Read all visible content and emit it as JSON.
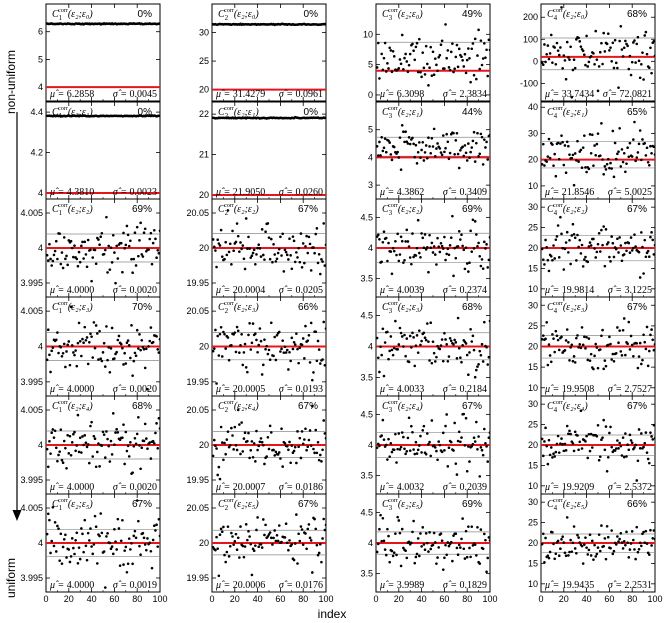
{
  "side": {
    "top_label": "non-uniform",
    "bottom_label": "uniform"
  },
  "xlabel": "index",
  "colors": {
    "mean_line": "#e8141c",
    "band_line": "#8a8a8a",
    "points": "#000000"
  },
  "chart_data": {
    "type": "scatter",
    "x_range": [
      0,
      100
    ],
    "x_ticks": [
      "0",
      "20",
      "40",
      "60",
      "80",
      "100"
    ],
    "columns": [
      {
        "C": "C",
        "sub": "1",
        "sup": "corr",
        "rows": [
          {
            "args": "(ε₂;ε₀)",
            "pct": "0%",
            "mu": "6.2858",
            "sigma": "0.0045",
            "mu_val": 6.2858,
            "sigma_val": 0.0045,
            "range": [
              3.5,
              7
            ],
            "ticks": [
              4,
              5,
              6,
              7
            ],
            "ref": 4,
            "mode": "flat"
          },
          {
            "args": "(ε₂;ε₁)",
            "pct": "0%",
            "mu": "4.3810",
            "sigma": "0.0023",
            "mu_val": 4.381,
            "sigma_val": 0.0023,
            "range": [
              3.97,
              4.45
            ],
            "ticks": [
              4,
              4.2,
              4.4
            ],
            "ref": 4,
            "mode": "flat"
          },
          {
            "args": "(ε₂;ε₂)",
            "pct": "69%",
            "mu": "4.0000",
            "sigma": "0.0020",
            "mu_val": 4.0,
            "sigma_val": 0.002,
            "range": [
              3.993,
              4.007
            ],
            "ticks": [
              3.995,
              4,
              4.005
            ],
            "ref": 4,
            "mode": "scatter"
          },
          {
            "args": "(ε₂;ε₃)",
            "pct": "70%",
            "mu": "4.0000",
            "sigma": "0.0020",
            "mu_val": 4.0,
            "sigma_val": 0.002,
            "range": [
              3.993,
              4.007
            ],
            "ticks": [
              3.995,
              4,
              4.005
            ],
            "ref": 4,
            "mode": "scatter"
          },
          {
            "args": "(ε₂;ε₄)",
            "pct": "68%",
            "mu": "4.0000",
            "sigma": "0.0020",
            "mu_val": 4.0,
            "sigma_val": 0.002,
            "range": [
              3.993,
              4.007
            ],
            "ticks": [
              3.995,
              4,
              4.005
            ],
            "ref": 4,
            "mode": "scatter"
          },
          {
            "args": "(ε₂;ε₅)",
            "pct": "67%",
            "mu": "4.0000",
            "sigma": "0.0019",
            "mu_val": 4.0,
            "sigma_val": 0.0019,
            "range": [
              3.993,
              4.007
            ],
            "ticks": [
              3.995,
              4,
              4.005
            ],
            "ref": 4,
            "mode": "scatter"
          }
        ]
      },
      {
        "C": "C",
        "sub": "2",
        "sup": "corr",
        "rows": [
          {
            "args": "(ε₂;ε₀)",
            "pct": "0%",
            "mu": "31.4279",
            "sigma": "0.0961",
            "mu_val": 31.4279,
            "sigma_val": 0.0961,
            "range": [
              18,
              35
            ],
            "ticks": [
              20,
              25,
              30,
              35
            ],
            "ref": 20,
            "mode": "flat"
          },
          {
            "args": "(ε₂;ε₁)",
            "pct": "0%",
            "mu": "21.9050",
            "sigma": "0.0260",
            "mu_val": 21.905,
            "sigma_val": 0.026,
            "range": [
              19.9,
              22.3
            ],
            "ticks": [
              20,
              21,
              22
            ],
            "ref": 20,
            "mode": "flat"
          },
          {
            "args": "(ε₂;ε₂)",
            "pct": "67%",
            "mu": "20.0004",
            "sigma": "0.0205",
            "mu_val": 20.0004,
            "sigma_val": 0.0205,
            "range": [
              19.93,
              20.07
            ],
            "ticks": [
              19.95,
              20,
              20.05
            ],
            "ref": 20,
            "mode": "scatter"
          },
          {
            "args": "(ε₂;ε₃)",
            "pct": "66%",
            "mu": "20.0005",
            "sigma": "0.0193",
            "mu_val": 20.0005,
            "sigma_val": 0.0193,
            "range": [
              19.93,
              20.07
            ],
            "ticks": [
              19.95,
              20,
              20.05
            ],
            "ref": 20,
            "mode": "scatter"
          },
          {
            "args": "(ε₂;ε₄)",
            "pct": "67%",
            "mu": "20.0007",
            "sigma": "0.0186",
            "mu_val": 20.0007,
            "sigma_val": 0.0186,
            "range": [
              19.93,
              20.07
            ],
            "ticks": [
              19.95,
              20,
              20.05
            ],
            "ref": 20,
            "mode": "scatter"
          },
          {
            "args": "(ε₂;ε₅)",
            "pct": "67%",
            "mu": "20.0006",
            "sigma": "0.0176",
            "mu_val": 20.0006,
            "sigma_val": 0.0176,
            "range": [
              19.93,
              20.07
            ],
            "ticks": [
              19.95,
              20,
              20.05
            ],
            "ref": 20,
            "mode": "scatter"
          }
        ]
      },
      {
        "C": "C",
        "sub": "3",
        "sup": "corr",
        "rows": [
          {
            "args": "(ε₂;ε₀)",
            "pct": "49%",
            "mu": "6.3098",
            "sigma": "2.3834",
            "mu_val": 6.3098,
            "sigma_val": 2.3834,
            "range": [
              -1,
              15
            ],
            "ticks": [
              0,
              5,
              10,
              15
            ],
            "ref": 4,
            "mode": "scatter"
          },
          {
            "args": "(ε₂;ε₁)",
            "pct": "44%",
            "mu": "4.3862",
            "sigma": "0.3409",
            "mu_val": 4.3862,
            "sigma_val": 0.3409,
            "range": [
              2.5,
              6
            ],
            "ticks": [
              3,
              4,
              5,
              6
            ],
            "ref": 4,
            "mode": "scatter"
          },
          {
            "args": "(ε₂;ε₂)",
            "pct": "69%",
            "mu": "4.0039",
            "sigma": "0.2374",
            "mu_val": 4.0039,
            "sigma_val": 0.2374,
            "range": [
              3.2,
              4.8
            ],
            "ticks": [
              3.5,
              4,
              4.5
            ],
            "ref": 4,
            "mode": "scatter"
          },
          {
            "args": "(ε₂;ε₃)",
            "pct": "68%",
            "mu": "4.0033",
            "sigma": "0.2184",
            "mu_val": 4.0033,
            "sigma_val": 0.2184,
            "range": [
              3.2,
              4.8
            ],
            "ticks": [
              3.5,
              4,
              4.5
            ],
            "ref": 4,
            "mode": "scatter"
          },
          {
            "args": "(ε₂;ε₄)",
            "pct": "67%",
            "mu": "4.0032",
            "sigma": "0.2039",
            "mu_val": 4.0032,
            "sigma_val": 0.2039,
            "range": [
              3.2,
              4.8
            ],
            "ticks": [
              3.5,
              4,
              4.5
            ],
            "ref": 4,
            "mode": "scatter"
          },
          {
            "args": "(ε₂;ε₅)",
            "pct": "69%",
            "mu": "3.9989",
            "sigma": "0.1829",
            "mu_val": 3.9989,
            "sigma_val": 0.1829,
            "range": [
              3.2,
              4.8
            ],
            "ticks": [
              3.5,
              4,
              4.5
            ],
            "ref": 4,
            "mode": "scatter"
          }
        ]
      },
      {
        "C": "C",
        "sub": "4",
        "sup": "corr",
        "rows": [
          {
            "args": "(ε₂;ε₀)",
            "pct": "68%",
            "mu": "33.7434",
            "sigma": "72.0821",
            "mu_val": 33.7434,
            "sigma_val": 72.0821,
            "range": [
              -180,
              260
            ],
            "ticks": [
              -100,
              0,
              100,
              200
            ],
            "ref": 20,
            "mode": "scatter"
          },
          {
            "args": "(ε₂;ε₁)",
            "pct": "65%",
            "mu": "21.8546",
            "sigma": "5.0025",
            "mu_val": 21.8546,
            "sigma_val": 5.0025,
            "range": [
              5,
              42
            ],
            "ticks": [
              10,
              20,
              30,
              40
            ],
            "ref": 20,
            "mode": "scatter"
          },
          {
            "args": "(ε₂;ε₂)",
            "pct": "67%",
            "mu": "19.9814",
            "sigma": "3.1225",
            "mu_val": 19.9814,
            "sigma_val": 3.1225,
            "range": [
              8,
              32
            ],
            "ticks": [
              10,
              15,
              20,
              25,
              30
            ],
            "ref": 20,
            "mode": "scatter"
          },
          {
            "args": "(ε₂;ε₃)",
            "pct": "67%",
            "mu": "19.9508",
            "sigma": "2.7527",
            "mu_val": 19.9508,
            "sigma_val": 2.7527,
            "range": [
              8,
              32
            ],
            "ticks": [
              10,
              15,
              20,
              25,
              30
            ],
            "ref": 20,
            "mode": "scatter"
          },
          {
            "args": "(ε₂;ε₄)",
            "pct": "67%",
            "mu": "19.9209",
            "sigma": "2.5372",
            "mu_val": 19.9209,
            "sigma_val": 2.5372,
            "range": [
              8,
              32
            ],
            "ticks": [
              10,
              15,
              20,
              25,
              30
            ],
            "ref": 20,
            "mode": "scatter"
          },
          {
            "args": "(ε₂;ε₅)",
            "pct": "66%",
            "mu": "19.9435",
            "sigma": "2.2531",
            "mu_val": 19.9435,
            "sigma_val": 2.2531,
            "range": [
              8,
              32
            ],
            "ticks": [
              10,
              15,
              20,
              25,
              30
            ],
            "ref": 20,
            "mode": "scatter"
          }
        ]
      }
    ]
  }
}
